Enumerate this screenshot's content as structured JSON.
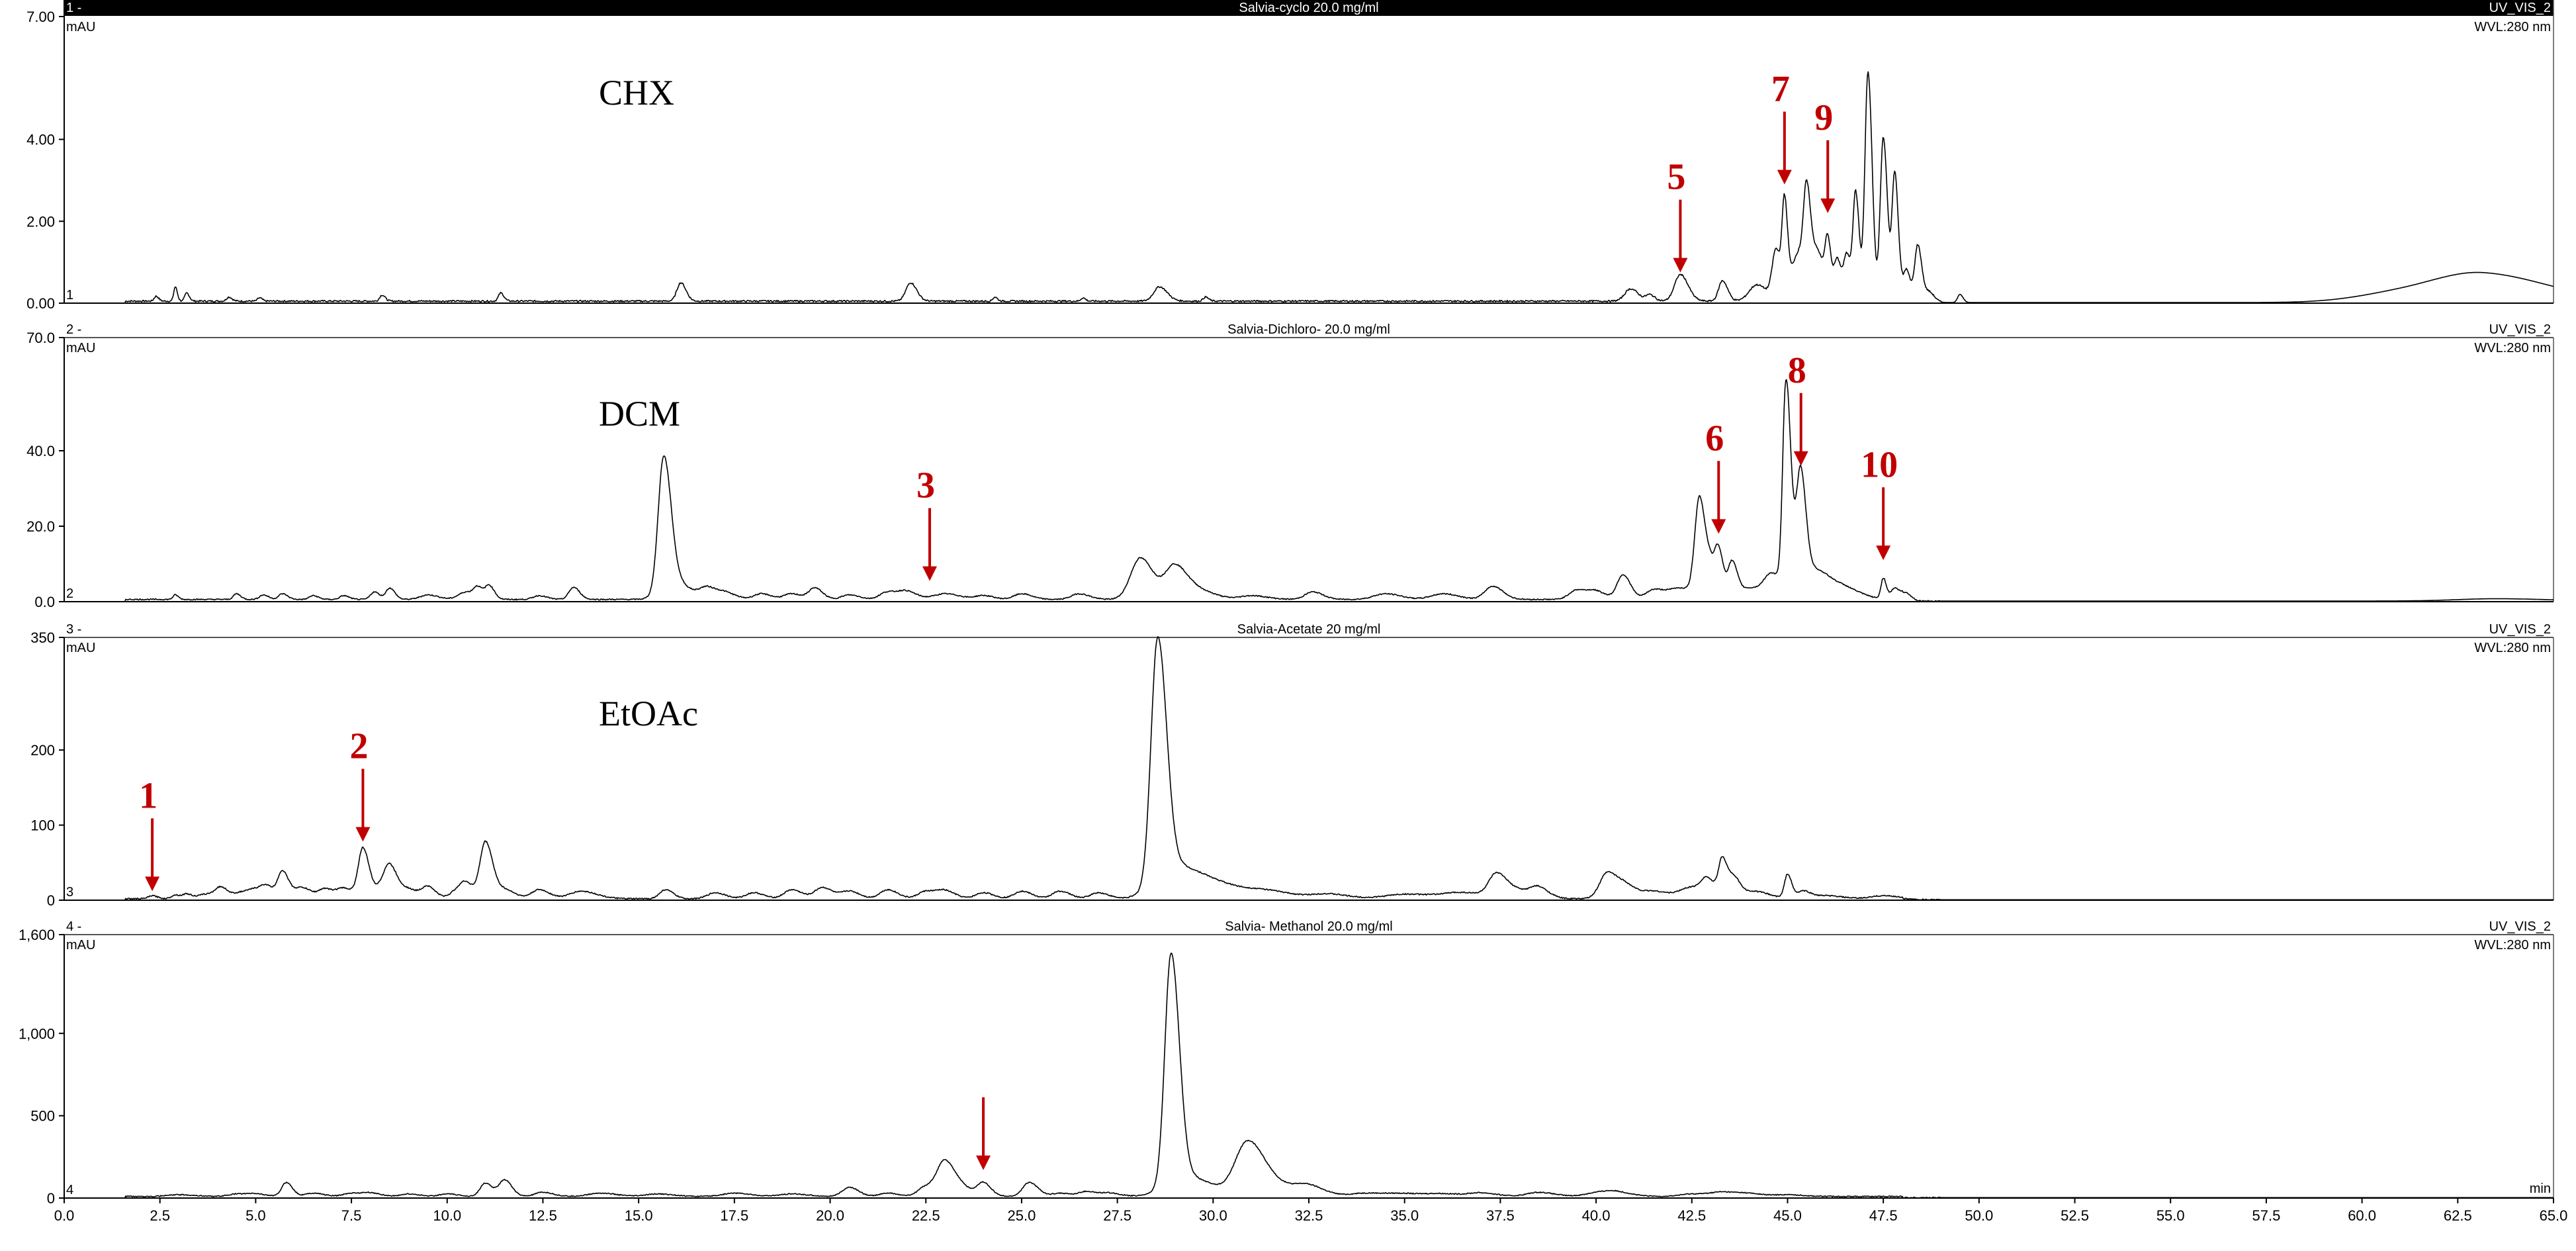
{
  "chart_data": {
    "type": "line",
    "figure_kind": "HPLC chromatogram stack",
    "xaxis": {
      "min": 0,
      "max": 65,
      "unit_label": "min",
      "ticks": [
        "0.0",
        "2.5",
        "5.0",
        "7.5",
        "10.0",
        "12.5",
        "15.0",
        "17.5",
        "20.0",
        "22.5",
        "25.0",
        "27.5",
        "30.0",
        "32.5",
        "35.0",
        "37.5",
        "40.0",
        "42.5",
        "45.0",
        "47.5",
        "50.0",
        "52.5",
        "55.0",
        "57.5",
        "60.0",
        "62.5",
        "65.0"
      ]
    },
    "detector": "UV_VIS_2",
    "wavelength": "WVL:280 nm",
    "panels": [
      {
        "id": "1 -",
        "trace_no": "1",
        "title": "Salvia-cyclo 20.0 mg/ml",
        "label": "CHX",
        "yunit": "mAU",
        "ymax": 7.0,
        "ymax_label": "7.00",
        "yticks": [
          {
            "v": 4,
            "t": "4.00"
          },
          {
            "v": 2,
            "t": "2.00"
          },
          {
            "v": 0,
            "t": "0.00"
          }
        ],
        "baseline": 0.05,
        "peaks": [
          [
            2.4,
            0.12,
            0.05
          ],
          [
            2.9,
            0.35,
            0.04
          ],
          [
            3.2,
            0.2,
            0.05
          ],
          [
            4.3,
            0.1,
            0.06
          ],
          [
            5.1,
            0.08,
            0.05
          ],
          [
            8.3,
            0.15,
            0.06
          ],
          [
            11.4,
            0.2,
            0.06
          ],
          [
            16.1,
            0.45,
            0.1
          ],
          [
            22.1,
            0.45,
            0.12
          ],
          [
            24.3,
            0.1,
            0.05
          ],
          [
            26.6,
            0.08,
            0.05
          ],
          [
            28.6,
            0.35,
            0.15
          ],
          [
            29.8,
            0.1,
            0.06
          ],
          [
            40.9,
            0.3,
            0.15
          ],
          [
            41.4,
            0.15,
            0.1
          ],
          [
            42.2,
            0.65,
            0.15
          ],
          [
            43.3,
            0.5,
            0.1
          ],
          [
            44.2,
            0.4,
            0.2
          ],
          [
            44.7,
            1.2,
            0.1
          ],
          [
            44.92,
            2.1,
            0.06
          ],
          [
            45.3,
            1.2,
            0.2
          ],
          [
            45.5,
            2.0,
            0.08
          ],
          [
            45.8,
            1.0,
            0.12
          ],
          [
            46.05,
            1.3,
            0.07
          ],
          [
            46.3,
            1.0,
            0.08
          ],
          [
            46.55,
            1.1,
            0.08
          ],
          [
            46.78,
            2.6,
            0.07
          ],
          [
            47.1,
            5.6,
            0.08
          ],
          [
            47.5,
            4.0,
            0.08
          ],
          [
            47.8,
            3.1,
            0.07
          ],
          [
            48.1,
            0.8,
            0.08
          ],
          [
            48.4,
            1.4,
            0.08
          ],
          [
            48.7,
            0.25,
            0.1
          ],
          [
            49.5,
            0.2,
            0.06
          ],
          [
            61.0,
            0.2,
            1.2
          ],
          [
            63.2,
            0.65,
            1.3
          ]
        ],
        "noise": 0.02,
        "annotations": [
          {
            "text": "5",
            "x": 42.2,
            "y": 0.75
          },
          {
            "text": "7",
            "x": 44.92,
            "y": 2.9
          },
          {
            "text": "9",
            "x": 46.05,
            "y": 2.2
          }
        ]
      },
      {
        "id": "2 -",
        "trace_no": "2",
        "title": "Salvia-Dichloro- 20.0 mg/ml",
        "label": "DCM",
        "yunit": "mAU",
        "ymax": 70.0,
        "ymax_label": "70.0",
        "yticks": [
          {
            "v": 40,
            "t": "40.0"
          },
          {
            "v": 20,
            "t": "20.0"
          },
          {
            "v": 0,
            "t": "0.0"
          }
        ],
        "baseline": 0.6,
        "peaks": [
          [
            2.9,
            1.2,
            0.06
          ],
          [
            4.5,
            1.5,
            0.08
          ],
          [
            5.2,
            1.2,
            0.1
          ],
          [
            5.7,
            1.5,
            0.1
          ],
          [
            6.5,
            1.0,
            0.1
          ],
          [
            7.3,
            1.0,
            0.1
          ],
          [
            8.1,
            2.0,
            0.1
          ],
          [
            8.5,
            3.0,
            0.1
          ],
          [
            9.5,
            1.2,
            0.2
          ],
          [
            10.5,
            2.0,
            0.2
          ],
          [
            10.8,
            2.5,
            0.1
          ],
          [
            11.1,
            3.5,
            0.1
          ],
          [
            12.4,
            1.0,
            0.15
          ],
          [
            13.3,
            3.2,
            0.12
          ],
          [
            15.65,
            34.5,
            0.14
          ],
          [
            15.9,
            5.0,
            0.3
          ],
          [
            16.8,
            3.0,
            0.2
          ],
          [
            17.3,
            1.5,
            0.2
          ],
          [
            18.2,
            1.5,
            0.2
          ],
          [
            19.0,
            1.5,
            0.2
          ],
          [
            19.6,
            3.0,
            0.15
          ],
          [
            20.5,
            1.2,
            0.2
          ],
          [
            21.5,
            2.0,
            0.2
          ],
          [
            22.0,
            2.0,
            0.2
          ],
          [
            23.0,
            1.5,
            0.3
          ],
          [
            24.0,
            1.0,
            0.2
          ],
          [
            25.0,
            1.5,
            0.2
          ],
          [
            26.5,
            1.5,
            0.2
          ],
          [
            28.1,
            11.0,
            0.25
          ],
          [
            29.0,
            9.0,
            0.25
          ],
          [
            29.7,
            2.0,
            0.3
          ],
          [
            31.0,
            1.0,
            0.3
          ],
          [
            32.6,
            2.0,
            0.2
          ],
          [
            34.5,
            1.5,
            0.3
          ],
          [
            36.0,
            1.5,
            0.3
          ],
          [
            37.3,
            3.5,
            0.2
          ],
          [
            39.5,
            2.5,
            0.2
          ],
          [
            40.0,
            2.0,
            0.2
          ],
          [
            40.7,
            6.5,
            0.15
          ],
          [
            41.5,
            2.5,
            0.2
          ],
          [
            42.2,
            3.0,
            0.3
          ],
          [
            42.7,
            26.0,
            0.12
          ],
          [
            43.0,
            6.0,
            0.1
          ],
          [
            43.2,
            12.0,
            0.1
          ],
          [
            43.55,
            9.0,
            0.1
          ],
          [
            44.0,
            3.0,
            0.3
          ],
          [
            44.6,
            6.0,
            0.2
          ],
          [
            44.95,
            48.0,
            0.08
          ],
          [
            45.1,
            14.0,
            0.12
          ],
          [
            45.35,
            26.0,
            0.1
          ],
          [
            45.7,
            8.0,
            0.35
          ],
          [
            46.6,
            2.0,
            0.3
          ],
          [
            47.5,
            5.5,
            0.06
          ],
          [
            47.8,
            3.0,
            0.1
          ],
          [
            48.1,
            2.0,
            0.1
          ],
          [
            63.5,
            0.6,
            1.0
          ]
        ],
        "noise": 0.15,
        "annotations": [
          {
            "text": "3",
            "x": 22.6,
            "y": 5.5
          },
          {
            "text": "6",
            "x": 43.2,
            "y": 18
          },
          {
            "text": "8",
            "x": 45.35,
            "y": 36
          },
          {
            "text": "10",
            "x": 47.5,
            "y": 11
          }
        ]
      },
      {
        "id": "3 -",
        "trace_no": "3",
        "title": "Salvia-Acetate 20 mg/ml",
        "label": "EtOAc",
        "yunit": "mAU",
        "ymax": 350,
        "ymax_label": "350",
        "yticks": [
          {
            "v": 200,
            "t": "200"
          },
          {
            "v": 100,
            "t": "100"
          },
          {
            "v": 0,
            "t": "0"
          }
        ],
        "baseline": 2,
        "peaks": [
          [
            2.3,
            4,
            0.1
          ],
          [
            2.9,
            5,
            0.1
          ],
          [
            3.2,
            6,
            0.1
          ],
          [
            3.7,
            6,
            0.2
          ],
          [
            4.1,
            14,
            0.15
          ],
          [
            4.6,
            7,
            0.15
          ],
          [
            5.0,
            12,
            0.2
          ],
          [
            5.3,
            12,
            0.15
          ],
          [
            5.7,
            35,
            0.12
          ],
          [
            6.2,
            15,
            0.2
          ],
          [
            6.8,
            12,
            0.15
          ],
          [
            7.3,
            14,
            0.2
          ],
          [
            7.8,
            65,
            0.12
          ],
          [
            8.3,
            15,
            0.2
          ],
          [
            8.5,
            35,
            0.15
          ],
          [
            9.0,
            12,
            0.2
          ],
          [
            9.5,
            15,
            0.15
          ],
          [
            10.3,
            12,
            0.2
          ],
          [
            10.5,
            14,
            0.15
          ],
          [
            11.0,
            75,
            0.14
          ],
          [
            11.5,
            12,
            0.2
          ],
          [
            12.4,
            12,
            0.2
          ],
          [
            13.5,
            10,
            0.3
          ],
          [
            15.7,
            12,
            0.15
          ],
          [
            17.0,
            8,
            0.2
          ],
          [
            18.0,
            8,
            0.2
          ],
          [
            19.0,
            12,
            0.2
          ],
          [
            19.8,
            15,
            0.2
          ],
          [
            20.5,
            10,
            0.2
          ],
          [
            21.5,
            12,
            0.2
          ],
          [
            22.5,
            10,
            0.2
          ],
          [
            23.0,
            10,
            0.2
          ],
          [
            24.0,
            8,
            0.2
          ],
          [
            25.0,
            10,
            0.2
          ],
          [
            26.0,
            10,
            0.2
          ],
          [
            27.0,
            8,
            0.2
          ],
          [
            28.55,
            318,
            0.17
          ],
          [
            28.9,
            40,
            0.45
          ],
          [
            30.0,
            20,
            0.6
          ],
          [
            31.5,
            8,
            0.5
          ],
          [
            33.0,
            6,
            0.4
          ],
          [
            35.0,
            6,
            0.5
          ],
          [
            36.5,
            8,
            0.5
          ],
          [
            37.4,
            30,
            0.2
          ],
          [
            38.0,
            10,
            0.3
          ],
          [
            38.5,
            12,
            0.2
          ],
          [
            40.3,
            35,
            0.2
          ],
          [
            40.8,
            15,
            0.2
          ],
          [
            41.5,
            10,
            0.3
          ],
          [
            42.5,
            15,
            0.3
          ],
          [
            42.9,
            20,
            0.15
          ],
          [
            43.3,
            50,
            0.1
          ],
          [
            43.6,
            25,
            0.12
          ],
          [
            44.1,
            10,
            0.3
          ],
          [
            45.0,
            32,
            0.08
          ],
          [
            45.4,
            10,
            0.15
          ],
          [
            46.0,
            4,
            0.3
          ],
          [
            47.5,
            4,
            0.3
          ]
        ],
        "noise": 0.8,
        "annotations": [
          {
            "text": "1",
            "x": 2.3,
            "y": 12
          },
          {
            "text": "2",
            "x": 7.8,
            "y": 78
          }
        ]
      },
      {
        "id": "4 -",
        "trace_no": "4",
        "title": "Salvia- Methanol 20.0  mg/ml",
        "label": "",
        "yunit": "mAU",
        "ymax": 1600,
        "ymax_label": "1,600",
        "yticks": [
          {
            "v": 1000,
            "t": "1,000"
          },
          {
            "v": 500,
            "t": "500"
          },
          {
            "v": 0,
            "t": "0"
          }
        ],
        "baseline": 10,
        "peaks": [
          [
            3.0,
            10,
            0.3
          ],
          [
            4.5,
            15,
            0.2
          ],
          [
            5.0,
            15,
            0.2
          ],
          [
            5.8,
            85,
            0.12
          ],
          [
            6.5,
            20,
            0.2
          ],
          [
            7.5,
            20,
            0.2
          ],
          [
            8.0,
            20,
            0.2
          ],
          [
            9.0,
            15,
            0.2
          ],
          [
            10.0,
            15,
            0.2
          ],
          [
            11.0,
            80,
            0.14
          ],
          [
            11.5,
            100,
            0.14
          ],
          [
            12.5,
            25,
            0.2
          ],
          [
            14.0,
            20,
            0.3
          ],
          [
            15.5,
            15,
            0.3
          ],
          [
            17.5,
            20,
            0.3
          ],
          [
            19.0,
            15,
            0.3
          ],
          [
            20.5,
            55,
            0.18
          ],
          [
            21.5,
            20,
            0.2
          ],
          [
            22.5,
            60,
            0.2
          ],
          [
            23.0,
            210,
            0.2
          ],
          [
            23.5,
            40,
            0.2
          ],
          [
            24.0,
            80,
            0.15
          ],
          [
            25.2,
            85,
            0.17
          ],
          [
            26.0,
            20,
            0.2
          ],
          [
            26.7,
            30,
            0.2
          ],
          [
            27.3,
            20,
            0.2
          ],
          [
            28.9,
            1390,
            0.16
          ],
          [
            29.3,
            120,
            0.5
          ],
          [
            30.9,
            320,
            0.32
          ],
          [
            31.8,
            60,
            0.5
          ],
          [
            32.5,
            40,
            0.3
          ],
          [
            34.0,
            20,
            0.4
          ],
          [
            35.0,
            15,
            0.4
          ],
          [
            36.0,
            15,
            0.4
          ],
          [
            37.0,
            20,
            0.3
          ],
          [
            38.5,
            25,
            0.3
          ],
          [
            40.0,
            20,
            0.3
          ],
          [
            40.5,
            25,
            0.3
          ],
          [
            42.5,
            15,
            0.3
          ],
          [
            43.3,
            25,
            0.3
          ],
          [
            44.0,
            15,
            0.3
          ],
          [
            45.0,
            10,
            0.3
          ]
        ],
        "noise": 3,
        "annotations": [
          {
            "text": "",
            "x": 24.0,
            "y": 170
          }
        ]
      }
    ]
  }
}
